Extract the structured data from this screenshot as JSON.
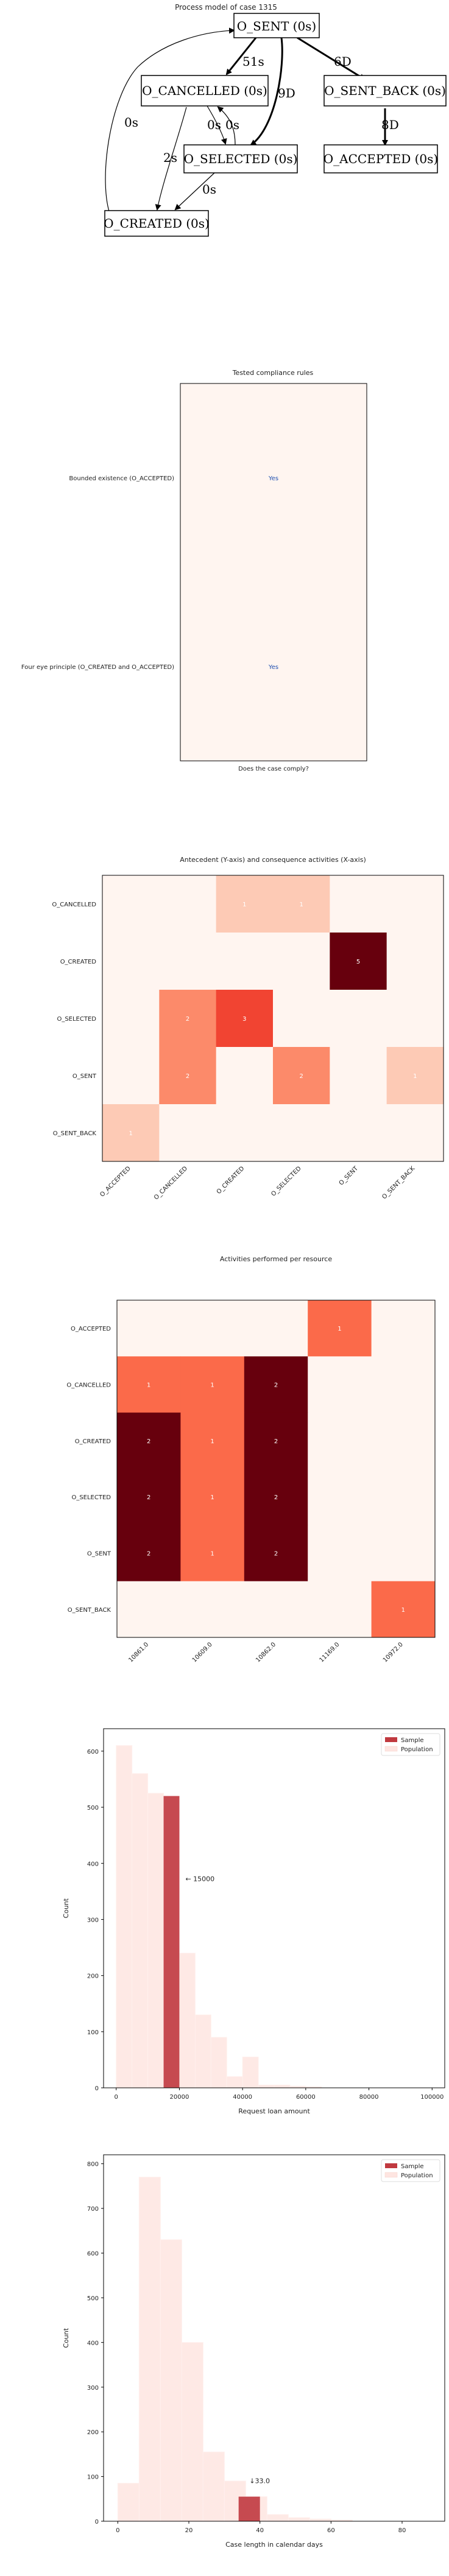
{
  "chart_data": [
    {
      "type": "diagram",
      "title": "Process model of case 1315",
      "nodes": [
        {
          "id": "sent",
          "label": "O_SENT (0s)"
        },
        {
          "id": "cancelled",
          "label": "O_CANCELLED (0s)"
        },
        {
          "id": "sent_back",
          "label": "O_SENT_BACK (0s)"
        },
        {
          "id": "selected",
          "label": "O_SELECTED (0s)"
        },
        {
          "id": "accepted",
          "label": "O_ACCEPTED (0s)"
        },
        {
          "id": "created",
          "label": "O_CREATED (0s)"
        }
      ],
      "edges": [
        {
          "from": "sent",
          "to": "cancelled",
          "label": "51s",
          "bold": true
        },
        {
          "from": "sent",
          "to": "selected",
          "label": "9D",
          "bold": true
        },
        {
          "from": "sent",
          "to": "sent_back",
          "label": "6D",
          "bold": true
        },
        {
          "from": "cancelled",
          "to": "selected",
          "label": "0s",
          "bold": false
        },
        {
          "from": "selected",
          "to": "cancelled",
          "label": "0s",
          "bold": false
        },
        {
          "from": "cancelled",
          "to": "created",
          "label": "2s",
          "bold": false
        },
        {
          "from": "selected",
          "to": "created",
          "label": "0s",
          "bold": false
        },
        {
          "from": "created",
          "to": "sent",
          "label": "0s",
          "bold": false
        },
        {
          "from": "sent_back",
          "to": "accepted",
          "label": "8D",
          "bold": true
        }
      ]
    },
    {
      "type": "heatmap",
      "title": "Tested compliance rules",
      "xlabel": "Does the case comply?",
      "rows": [
        "Bounded existence (O_ACCEPTED)",
        "Four eye principle (O_CREATED and O_ACCEPTED)"
      ],
      "values": [
        "Yes",
        "Yes"
      ]
    },
    {
      "type": "heatmap",
      "title": "Antecedent (Y-axis) and consequence activities (X-axis)",
      "rows": [
        "O_CANCELLED",
        "O_CREATED",
        "O_SELECTED",
        "O_SENT",
        "O_SENT_BACK"
      ],
      "cols": [
        "O_ACCEPTED",
        "O_CANCELLED",
        "O_CREATED",
        "O_SELECTED",
        "O_SENT",
        "O_SENT_BACK"
      ],
      "values": [
        [
          0,
          0,
          1,
          1,
          0,
          0
        ],
        [
          0,
          0,
          0,
          0,
          5,
          0
        ],
        [
          0,
          2,
          3,
          0,
          0,
          0
        ],
        [
          0,
          2,
          0,
          2,
          0,
          1
        ],
        [
          1,
          0,
          0,
          0,
          0,
          0
        ]
      ],
      "max": 5
    },
    {
      "type": "heatmap",
      "title": "Activities performed per resource",
      "rows": [
        "O_ACCEPTED",
        "O_CANCELLED",
        "O_CREATED",
        "O_SELECTED",
        "O_SENT",
        "O_SENT_BACK"
      ],
      "cols": [
        "10861.0",
        "10609.0",
        "10862.0",
        "11169.0",
        "10972.0"
      ],
      "values": [
        [
          0,
          0,
          0,
          1,
          0
        ],
        [
          1,
          1,
          2,
          0,
          0
        ],
        [
          2,
          1,
          2,
          0,
          0
        ],
        [
          2,
          1,
          2,
          0,
          0
        ],
        [
          2,
          1,
          2,
          0,
          0
        ],
        [
          0,
          0,
          0,
          0,
          1
        ]
      ],
      "max": 2
    },
    {
      "type": "bar",
      "xlabel": "Request loan amount",
      "ylabel": "Count",
      "xlim": [
        -4000,
        104000
      ],
      "ylim": [
        0,
        640
      ],
      "xticks": [
        0,
        20000,
        40000,
        60000,
        80000,
        100000
      ],
      "yticks": [
        0,
        100,
        200,
        300,
        400,
        500,
        600
      ],
      "bin_width": 5000,
      "legend": [
        "Sample",
        "Population"
      ],
      "legend_position": "top-right",
      "population": [
        {
          "x": 0,
          "count": 610
        },
        {
          "x": 5000,
          "count": 560
        },
        {
          "x": 10000,
          "count": 525
        },
        {
          "x": 15000,
          "count": 520
        },
        {
          "x": 20000,
          "count": 240
        },
        {
          "x": 25000,
          "count": 130
        },
        {
          "x": 30000,
          "count": 90
        },
        {
          "x": 35000,
          "count": 20
        },
        {
          "x": 40000,
          "count": 55
        },
        {
          "x": 45000,
          "count": 5
        },
        {
          "x": 50000,
          "count": 5
        },
        {
          "x": 55000,
          "count": 3
        },
        {
          "x": 60000,
          "count": 2
        }
      ],
      "sample": [
        {
          "x": 15000,
          "count": 520
        }
      ],
      "annotation": "← 15000",
      "annotation_x": 20000
    },
    {
      "type": "bar",
      "xlabel": "Case length in calendar days",
      "ylabel": "Count",
      "xlim": [
        -4,
        92
      ],
      "ylim": [
        0,
        820
      ],
      "xticks": [
        0,
        20,
        40,
        60,
        80
      ],
      "yticks": [
        0,
        100,
        200,
        300,
        400,
        500,
        600,
        700,
        800
      ],
      "bin_width": 6,
      "legend": [
        "Sample",
        "Population"
      ],
      "legend_position": "top-right",
      "population": [
        {
          "x": 0,
          "count": 85
        },
        {
          "x": 6,
          "count": 770
        },
        {
          "x": 12,
          "count": 630
        },
        {
          "x": 18,
          "count": 400
        },
        {
          "x": 24,
          "count": 155
        },
        {
          "x": 30,
          "count": 90
        },
        {
          "x": 36,
          "count": 55
        },
        {
          "x": 42,
          "count": 15
        },
        {
          "x": 48,
          "count": 8
        },
        {
          "x": 54,
          "count": 5
        },
        {
          "x": 60,
          "count": 3
        }
      ],
      "sample": [
        {
          "x": 34,
          "count": 55
        }
      ],
      "annotation": "↓33.0",
      "annotation_x": 36
    }
  ]
}
